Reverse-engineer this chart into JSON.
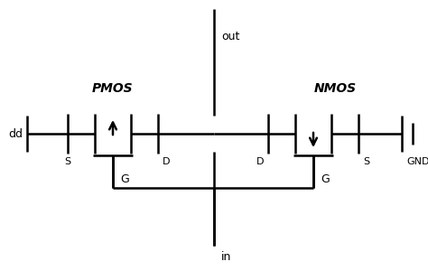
{
  "bg_color": "#ffffff",
  "line_color": "#000000",
  "text_color": "#000000",
  "lw": 1.8,
  "labels": {
    "pmos": "PMOS",
    "nmos": "NMOS",
    "out": "out",
    "in": "in",
    "dd": "dd",
    "gnd": "GND",
    "s_left": "S",
    "d_left": "D",
    "d_right": "D",
    "s_right": "S",
    "g_left": "G",
    "g_right": "G"
  },
  "figsize": [
    4.74,
    3.0
  ],
  "dpi": 100
}
